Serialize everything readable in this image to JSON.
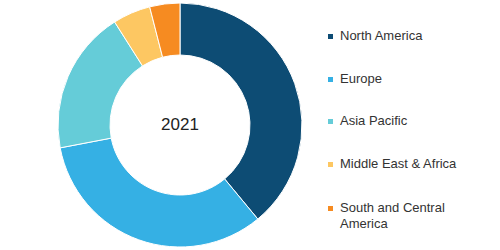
{
  "chart_data": {
    "type": "donut",
    "title": "2021",
    "categories": [
      "North America",
      "Europe",
      "Asia Pacific",
      "Middle East & Africa",
      "South and Central America"
    ],
    "values": [
      39,
      33,
      19,
      5,
      4
    ],
    "colors": [
      "#0d4c74",
      "#35b0e4",
      "#65ccd8",
      "#fdc762",
      "#f68b21"
    ],
    "legend": "right"
  }
}
